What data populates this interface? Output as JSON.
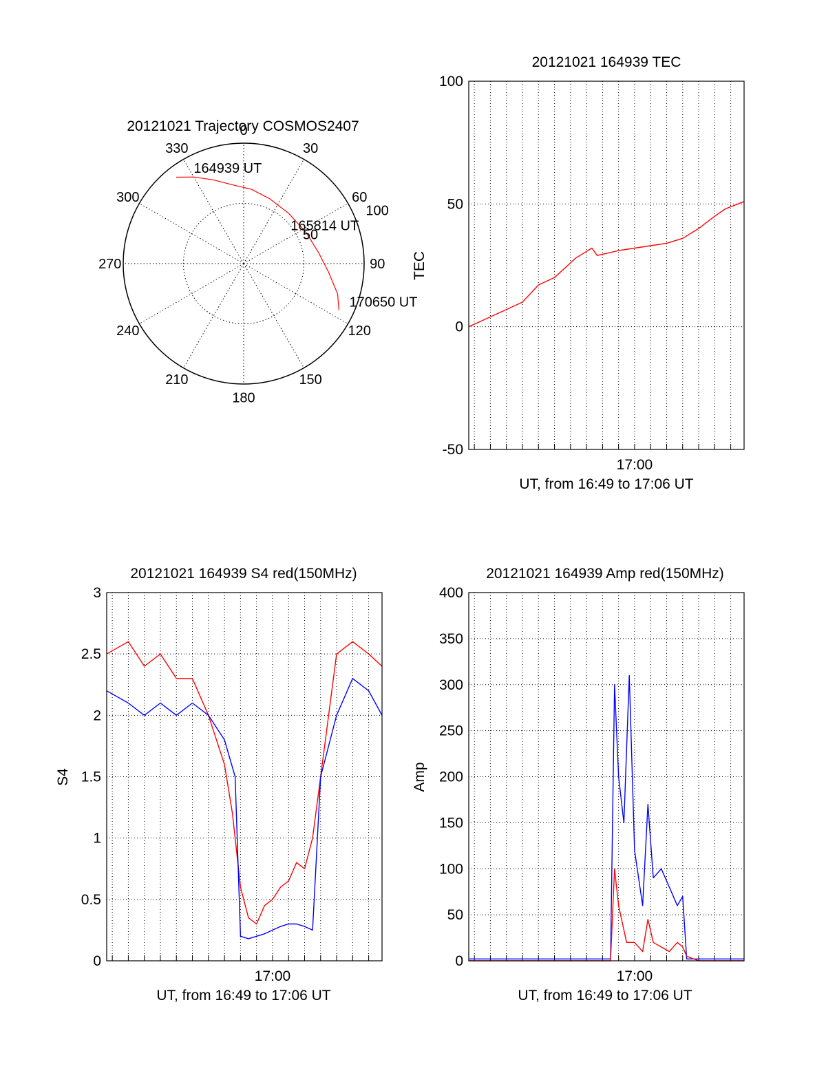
{
  "figure": {
    "background": "#ffffff"
  },
  "chart_data": [
    {
      "id": "trajectory",
      "type": "polar",
      "title": "20121021 Trajectory COSMOS2407",
      "azimuth_labels": [
        "0",
        "30",
        "60",
        "90",
        "120",
        "150",
        "180",
        "210",
        "240",
        "270",
        "300",
        "330"
      ],
      "radial_labels": [
        "50",
        "100"
      ],
      "rlim": [
        0,
        100
      ],
      "grid": true,
      "series": [
        {
          "color": "#ff0000",
          "points": [
            {
              "az": 322,
              "r": 91
            },
            {
              "az": 330,
              "r": 83
            },
            {
              "az": 340,
              "r": 74
            },
            {
              "az": 352,
              "r": 66
            },
            {
              "az": 6,
              "r": 62
            },
            {
              "az": 22,
              "r": 58
            },
            {
              "az": 42,
              "r": 56
            },
            {
              "az": 64,
              "r": 58
            },
            {
              "az": 82,
              "r": 63
            },
            {
              "az": 96,
              "r": 71
            },
            {
              "az": 108,
              "r": 82
            },
            {
              "az": 116,
              "r": 88
            }
          ]
        }
      ],
      "annotations": [
        {
          "text": "164939 UT",
          "az": 330,
          "r": 83
        },
        {
          "text": "165814 UT",
          "az": 58,
          "r": 46
        },
        {
          "text": "170650 UT",
          "az": 114,
          "r": 96
        }
      ]
    },
    {
      "id": "tec",
      "type": "line",
      "title": "20121021 164939 TEC",
      "xlabel": "UT, from 16:49 to 17:06 UT",
      "ylabel": "TEC",
      "xlim": [
        "16:49:39",
        "17:06:50"
      ],
      "ylim": [
        -50,
        100
      ],
      "yticks": [
        -50,
        0,
        50,
        100
      ],
      "xtick_labels": [
        {
          "time": "17:00",
          "label": "17:00"
        }
      ],
      "grid": true,
      "series": [
        {
          "color": "#ff0000",
          "points": [
            [
              "16:49:39",
              0
            ],
            [
              "16:50:20",
              2
            ],
            [
              "16:51:00",
              4
            ],
            [
              "16:52:00",
              7
            ],
            [
              "16:53:00",
              10
            ],
            [
              "16:54:00",
              17
            ],
            [
              "16:55:00",
              20
            ],
            [
              "16:55:40",
              24
            ],
            [
              "16:56:20",
              28
            ],
            [
              "16:56:50",
              30
            ],
            [
              "16:57:20",
              32
            ],
            [
              "16:57:40",
              29
            ],
            [
              "16:58:20",
              30
            ],
            [
              "16:59:00",
              31
            ],
            [
              "17:00:00",
              32
            ],
            [
              "17:01:00",
              33
            ],
            [
              "17:02:00",
              34
            ],
            [
              "17:03:00",
              36
            ],
            [
              "17:04:00",
              40
            ],
            [
              "17:05:00",
              45
            ],
            [
              "17:05:40",
              48
            ],
            [
              "17:06:50",
              51
            ]
          ]
        }
      ]
    },
    {
      "id": "s4",
      "type": "line",
      "title": "20121021 164939 S4 red(150MHz)",
      "xlabel": "UT, from 16:49 to 17:06 UT",
      "ylabel": "S4",
      "xlim": [
        "16:49:39",
        "17:06:50"
      ],
      "ylim": [
        0,
        3
      ],
      "yticks": [
        0,
        0.5,
        1,
        1.5,
        2,
        2.5,
        3
      ],
      "xtick_labels": [
        {
          "time": "17:00",
          "label": "17:00"
        }
      ],
      "grid": true,
      "series": [
        {
          "color": "#ff0000",
          "points": [
            [
              "16:49:39",
              2.5
            ],
            [
              "16:51:00",
              2.6
            ],
            [
              "16:52:00",
              2.4
            ],
            [
              "16:53:00",
              2.5
            ],
            [
              "16:54:00",
              2.3
            ],
            [
              "16:55:00",
              2.3
            ],
            [
              "16:56:00",
              2.0
            ],
            [
              "16:57:00",
              1.6
            ],
            [
              "16:57:30",
              1.2
            ],
            [
              "16:58:00",
              0.6
            ],
            [
              "16:58:30",
              0.35
            ],
            [
              "16:59:00",
              0.3
            ],
            [
              "16:59:30",
              0.45
            ],
            [
              "17:00:00",
              0.5
            ],
            [
              "17:00:30",
              0.6
            ],
            [
              "17:01:00",
              0.65
            ],
            [
              "17:01:30",
              0.8
            ],
            [
              "17:02:00",
              0.75
            ],
            [
              "17:02:30",
              1.0
            ],
            [
              "17:03:00",
              1.5
            ],
            [
              "17:03:30",
              2.0
            ],
            [
              "17:04:00",
              2.5
            ],
            [
              "17:05:00",
              2.6
            ],
            [
              "17:06:00",
              2.5
            ],
            [
              "17:06:50",
              2.4
            ]
          ]
        },
        {
          "color": "#0000ff",
          "points": [
            [
              "16:49:39",
              2.2
            ],
            [
              "16:51:00",
              2.1
            ],
            [
              "16:52:00",
              2.0
            ],
            [
              "16:53:00",
              2.1
            ],
            [
              "16:54:00",
              2.0
            ],
            [
              "16:55:00",
              2.1
            ],
            [
              "16:56:00",
              2.0
            ],
            [
              "16:57:00",
              1.8
            ],
            [
              "16:57:40",
              1.5
            ],
            [
              "16:58:00",
              0.2
            ],
            [
              "16:58:30",
              0.18
            ],
            [
              "16:59:00",
              0.2
            ],
            [
              "16:59:30",
              0.22
            ],
            [
              "17:00:00",
              0.25
            ],
            [
              "17:00:30",
              0.28
            ],
            [
              "17:01:00",
              0.3
            ],
            [
              "17:01:30",
              0.3
            ],
            [
              "17:02:00",
              0.28
            ],
            [
              "17:02:30",
              0.25
            ],
            [
              "17:03:00",
              1.5
            ],
            [
              "17:04:00",
              2.0
            ],
            [
              "17:05:00",
              2.3
            ],
            [
              "17:06:00",
              2.2
            ],
            [
              "17:06:50",
              2.0
            ]
          ]
        }
      ]
    },
    {
      "id": "amp",
      "type": "line",
      "title": "20121021 164939 Amp red(150MHz)",
      "xlabel": "UT, from 16:49 to 17:06 UT",
      "ylabel": "Amp",
      "xlim": [
        "16:49:39",
        "17:06:50"
      ],
      "ylim": [
        0,
        400
      ],
      "yticks": [
        0,
        50,
        100,
        150,
        200,
        250,
        300,
        350,
        400
      ],
      "xtick_labels": [
        {
          "time": "17:00",
          "label": "17:00"
        }
      ],
      "grid": true,
      "series": [
        {
          "color": "#0000ff",
          "points": [
            [
              "16:49:39",
              2
            ],
            [
              "16:55:00",
              2
            ],
            [
              "16:58:30",
              2
            ],
            [
              "16:58:45",
              300
            ],
            [
              "16:59:00",
              200
            ],
            [
              "16:59:20",
              150
            ],
            [
              "16:59:40",
              310
            ],
            [
              "17:00:00",
              120
            ],
            [
              "17:00:30",
              60
            ],
            [
              "17:00:50",
              170
            ],
            [
              "17:01:10",
              90
            ],
            [
              "17:01:40",
              100
            ],
            [
              "17:02:10",
              80
            ],
            [
              "17:02:40",
              60
            ],
            [
              "17:03:00",
              70
            ],
            [
              "17:03:15",
              2
            ],
            [
              "17:05:00",
              2
            ],
            [
              "17:06:50",
              2
            ]
          ]
        },
        {
          "color": "#ff0000",
          "points": [
            [
              "16:49:39",
              0
            ],
            [
              "16:58:30",
              0
            ],
            [
              "16:58:45",
              100
            ],
            [
              "16:59:00",
              60
            ],
            [
              "16:59:15",
              40
            ],
            [
              "16:59:30",
              20
            ],
            [
              "17:00:00",
              20
            ],
            [
              "17:00:30",
              10
            ],
            [
              "17:00:50",
              45
            ],
            [
              "17:01:10",
              20
            ],
            [
              "17:01:40",
              15
            ],
            [
              "17:02:10",
              10
            ],
            [
              "17:02:40",
              20
            ],
            [
              "17:03:00",
              15
            ],
            [
              "17:03:15",
              5
            ],
            [
              "17:04:00",
              0
            ],
            [
              "17:06:50",
              0
            ]
          ]
        }
      ]
    }
  ]
}
